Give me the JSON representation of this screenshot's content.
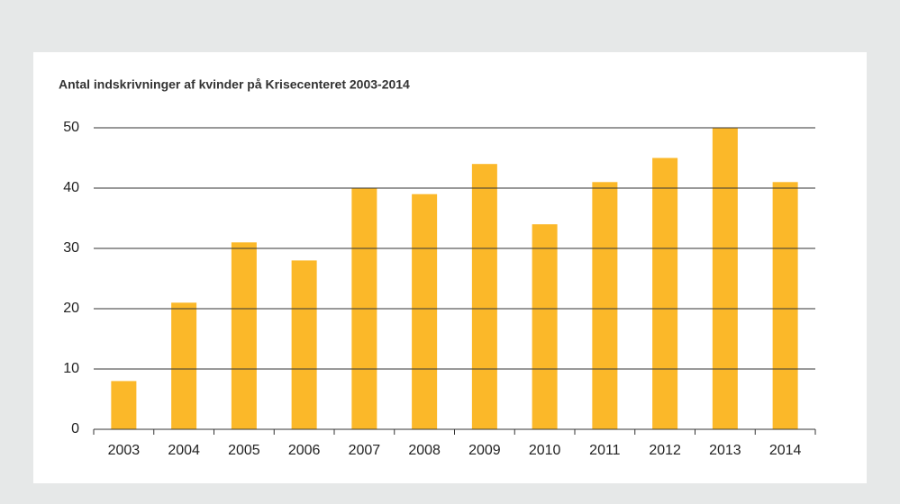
{
  "chart_data": {
    "type": "bar",
    "title": "Antal indskrivninger af kvinder på Krisecenteret 2003-2014",
    "categories": [
      "2003",
      "2004",
      "2005",
      "2006",
      "2007",
      "2008",
      "2009",
      "2010",
      "2011",
      "2012",
      "2013",
      "2014"
    ],
    "values": [
      8,
      21,
      31,
      28,
      40,
      39,
      44,
      34,
      41,
      45,
      50,
      41
    ],
    "color": "#fbb829",
    "ylim": [
      0,
      50
    ],
    "yticks": [
      0,
      10,
      20,
      30,
      40,
      50
    ],
    "grid": true
  }
}
